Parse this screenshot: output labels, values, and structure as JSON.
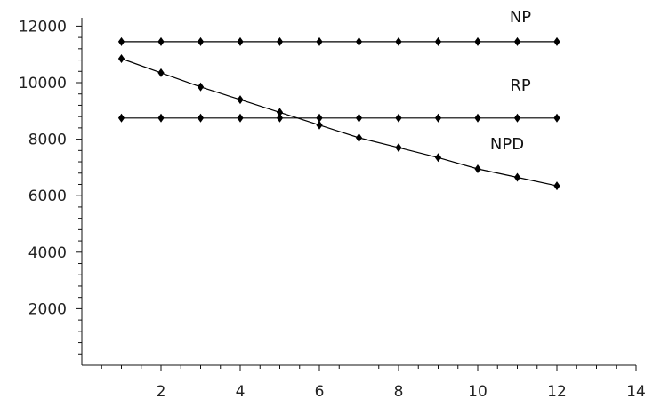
{
  "chart_data": {
    "type": "line",
    "title": "",
    "xlabel": "",
    "ylabel": "",
    "xlim": [
      0,
      14
    ],
    "ylim": [
      0,
      12000
    ],
    "xticks": [
      2,
      4,
      6,
      8,
      10,
      12,
      14
    ],
    "yticks": [
      2000,
      4000,
      6000,
      8000,
      10000,
      12000
    ],
    "grid": false,
    "series": [
      {
        "name": "NP",
        "x": [
          1,
          2,
          3,
          4,
          5,
          6,
          7,
          8,
          9,
          10,
          11,
          12
        ],
        "y": [
          11450,
          11450,
          11450,
          11450,
          11450,
          11450,
          11450,
          11450,
          11450,
          11450,
          11450,
          11450
        ]
      },
      {
        "name": "RP",
        "x": [
          1,
          2,
          3,
          4,
          5,
          6,
          7,
          8,
          9,
          10,
          11,
          12
        ],
        "y": [
          8750,
          8750,
          8750,
          8750,
          8750,
          8750,
          8750,
          8750,
          8750,
          8750,
          8750,
          8750
        ]
      },
      {
        "name": "NPD",
        "x": [
          1,
          2,
          3,
          4,
          5,
          6,
          7,
          8,
          9,
          10,
          11,
          12
        ],
        "y": [
          10850,
          10350,
          9850,
          9400,
          8950,
          8500,
          8050,
          7700,
          7350,
          6950,
          6650,
          6350
        ]
      }
    ]
  }
}
